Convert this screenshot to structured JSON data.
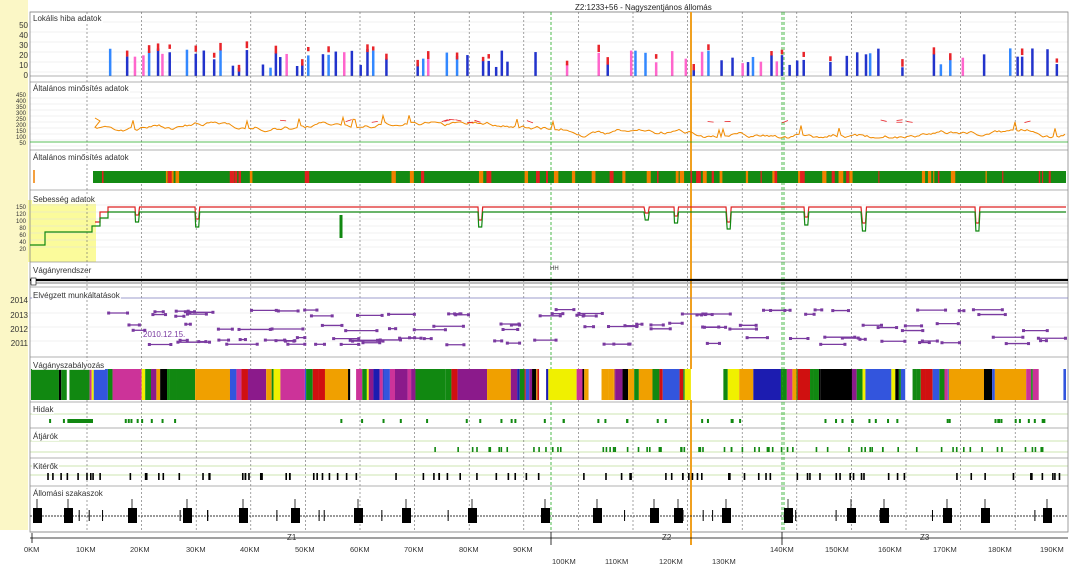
{
  "title": "Z2:1233+56 - Nagyszentjános állomás",
  "lanes": [
    {
      "id": "fault",
      "label": "Lokális hiba adatok"
    },
    {
      "id": "quality1",
      "label": "Általános minősítés adatok"
    },
    {
      "id": "quality2",
      "label": "Általános minősítés adatok"
    },
    {
      "id": "speed",
      "label": "Sebesség adatok"
    },
    {
      "id": "tracksystem",
      "label": "Vágányrendszer"
    },
    {
      "id": "works",
      "label": "Elvégzett munkáltatások"
    },
    {
      "id": "regulation",
      "label": "Vágányszabályozás"
    },
    {
      "id": "bridges",
      "label": "Hidak"
    },
    {
      "id": "crossings",
      "label": "Átjárók"
    },
    {
      "id": "switches",
      "label": "Kitérők"
    },
    {
      "id": "stations",
      "label": "Állomási szakaszok"
    }
  ],
  "fault_axis": [
    "50",
    "40",
    "30",
    "20",
    "10",
    "0"
  ],
  "quality_axis": [
    "450",
    "400",
    "350",
    "300",
    "250",
    "200",
    "150",
    "100",
    "50"
  ],
  "speed_axis": [
    "150",
    "120",
    "100",
    "80",
    "60",
    "40",
    "20"
  ],
  "works_years": [
    "2014",
    "2013",
    "2012",
    "2011"
  ],
  "work_date_label": "2010.12.15.",
  "tracksystem_marker": "HH",
  "km_axis_top": [
    "0KM",
    "10KM",
    "20KM",
    "30KM",
    "40KM",
    "50KM",
    "60KM",
    "70KM",
    "80KM",
    "90KM",
    "140KM",
    "150KM",
    "160KM",
    "170KM",
    "180KM",
    "190KM"
  ],
  "km_axis_bottom": [
    "100KM",
    "110KM",
    "120KM",
    "130KM"
  ],
  "zones": [
    "Z1",
    "Z2",
    "Z3"
  ],
  "colors": {
    "fault_red": "#e8242a",
    "fault_blue": "#2233cc",
    "fault_magenta": "#ff66cc",
    "quality_line": "#f08a00",
    "green": "#118811",
    "speed_red": "#dd2222",
    "purple": "#7a3aa0",
    "orange_marker": "#f0a020",
    "grid": "#cccccc",
    "dashed": "#555555"
  }
}
